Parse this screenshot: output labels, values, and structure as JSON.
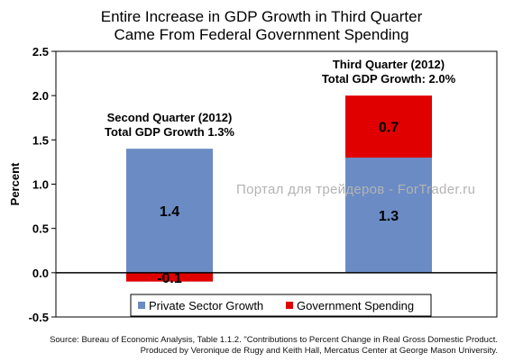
{
  "title_line1": "Entire Increase in GDP Growth in Third Quarter",
  "title_line2": "Came From Federal Government Spending",
  "watermark": "Портал для трейдеров - ForTrader.ru",
  "source_line1": "Source: Bureau of Economic Analysis, Table 1.1.2. \"Contributions to Percent Change in  Real Gross Domestic Product.",
  "source_line2": "Produced by Veronique de Rugy and Keith Hall, Mercatus Center at George Mason University.",
  "colors": {
    "private": "#6b8bc4",
    "government": "#e00000"
  },
  "chart_data": {
    "type": "bar",
    "stacked": true,
    "ylabel": "Percent",
    "xlabel": "",
    "ylim": [
      -0.5,
      2.5
    ],
    "yticks": [
      "-0.5",
      "0.0",
      "0.5",
      "1.0",
      "1.5",
      "2.0",
      "2.5"
    ],
    "grid": false,
    "legend_position": "bottom-center",
    "categories": [
      "Second Quarter (2012)",
      "Third Quarter (2012)"
    ],
    "category_annotations": [
      "Total GDP Growth 1.3%",
      "Total GDP Growth: 2.0%"
    ],
    "series": [
      {
        "name": "Private Sector Growth",
        "values": [
          1.4,
          1.3
        ],
        "labels": [
          "1.4",
          "1.3"
        ]
      },
      {
        "name": "Government Spending",
        "values": [
          -0.1,
          0.7
        ],
        "labels": [
          "-0.1",
          "0.7"
        ]
      }
    ]
  }
}
